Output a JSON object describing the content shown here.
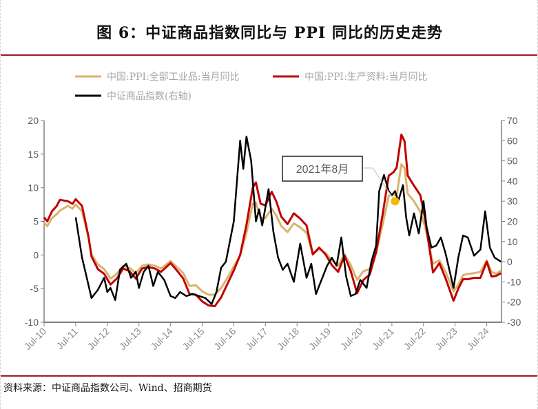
{
  "title": "图 6：中证商品指数同比与 PPI 同比的历史走势",
  "source": "资料来源：中证商品指数公司、Wind、招商期货",
  "chart_data": {
    "type": "line",
    "title": "图 6：中证商品指数同比与 PPI 同比的历史走势",
    "legend": [
      "中国:PPI:全部工业品:当月同比",
      "中国:PPI:生产资料:当月同比",
      "中证商品指数(右轴)"
    ],
    "legend_placement": "top",
    "x_ticks": [
      "Jul-10",
      "Jul-11",
      "Jul-12",
      "Jul-13",
      "Jul-14",
      "Jul-15",
      "Jul-16",
      "Jul-17",
      "Jul-18",
      "Jul-19",
      "Jul-20",
      "Jul-21",
      "Jul-22",
      "Jul-23",
      "Jul-24"
    ],
    "x_tick_years": [
      2010.5,
      2011.5,
      2012.5,
      2013.5,
      2014.5,
      2015.5,
      2016.5,
      2017.5,
      2018.5,
      2019.5,
      2020.5,
      2021.5,
      2022.5,
      2023.5,
      2024.5
    ],
    "xlim": [
      2010.5,
      2024.95
    ],
    "ylim_left": [
      -10,
      20
    ],
    "yticks_left": [
      -10,
      -5,
      0,
      5,
      10,
      15,
      20
    ],
    "ylim_right": [
      -30,
      70
    ],
    "yticks_right": [
      -30,
      -20,
      -10,
      0,
      10,
      20,
      30,
      40,
      50,
      60,
      70
    ],
    "annotation": {
      "text": "2021年8月",
      "x": 2021.6,
      "y": 8.0,
      "color": "#f5b800"
    },
    "series": [
      {
        "name": "中国:PPI:全部工业品:当月同比",
        "axis": "left",
        "color": "#d9b36a",
        "points": [
          [
            2010.5,
            4.8
          ],
          [
            2010.6,
            4.3
          ],
          [
            2010.75,
            5.5
          ],
          [
            2010.9,
            6.1
          ],
          [
            2011.0,
            6.6
          ],
          [
            2011.25,
            7.3
          ],
          [
            2011.4,
            6.9
          ],
          [
            2011.5,
            7.5
          ],
          [
            2011.7,
            6.5
          ],
          [
            2011.9,
            2.7
          ],
          [
            2012.0,
            0.1
          ],
          [
            2012.2,
            -1.4
          ],
          [
            2012.4,
            -2.1
          ],
          [
            2012.6,
            -3.5
          ],
          [
            2012.8,
            -2.8
          ],
          [
            2013.0,
            -1.6
          ],
          [
            2013.2,
            -1.9
          ],
          [
            2013.4,
            -2.7
          ],
          [
            2013.6,
            -1.6
          ],
          [
            2013.8,
            -1.4
          ],
          [
            2014.0,
            -1.6
          ],
          [
            2014.2,
            -2.0
          ],
          [
            2014.5,
            -0.9
          ],
          [
            2014.7,
            -1.8
          ],
          [
            2014.9,
            -2.7
          ],
          [
            2015.1,
            -4.6
          ],
          [
            2015.3,
            -4.5
          ],
          [
            2015.5,
            -5.4
          ],
          [
            2015.7,
            -5.9
          ],
          [
            2015.9,
            -5.9
          ],
          [
            2016.1,
            -4.9
          ],
          [
            2016.3,
            -3.4
          ],
          [
            2016.5,
            -1.7
          ],
          [
            2016.7,
            -0.1
          ],
          [
            2016.9,
            3.3
          ],
          [
            2017.1,
            7.6
          ],
          [
            2017.2,
            7.8
          ],
          [
            2017.35,
            5.5
          ],
          [
            2017.5,
            5.5
          ],
          [
            2017.7,
            6.9
          ],
          [
            2017.85,
            5.8
          ],
          [
            2018.0,
            4.3
          ],
          [
            2018.2,
            3.4
          ],
          [
            2018.4,
            4.7
          ],
          [
            2018.6,
            4.1
          ],
          [
            2018.8,
            3.3
          ],
          [
            2019.0,
            0.1
          ],
          [
            2019.2,
            0.9
          ],
          [
            2019.4,
            0.3
          ],
          [
            2019.6,
            -0.8
          ],
          [
            2019.8,
            -1.6
          ],
          [
            2020.0,
            0.1
          ],
          [
            2020.2,
            -1.5
          ],
          [
            2020.4,
            -3.7
          ],
          [
            2020.6,
            -2.4
          ],
          [
            2020.8,
            -2.1
          ],
          [
            2021.0,
            0.3
          ],
          [
            2021.2,
            4.4
          ],
          [
            2021.4,
            8.8
          ],
          [
            2021.55,
            9.0
          ],
          [
            2021.65,
            8.8
          ],
          [
            2021.8,
            13.5
          ],
          [
            2021.9,
            12.9
          ],
          [
            2022.0,
            9.1
          ],
          [
            2022.2,
            8.0
          ],
          [
            2022.4,
            6.4
          ],
          [
            2022.55,
            4.2
          ],
          [
            2022.7,
            0.9
          ],
          [
            2022.8,
            -1.3
          ],
          [
            2023.0,
            -0.8
          ],
          [
            2023.2,
            -2.5
          ],
          [
            2023.45,
            -5.4
          ],
          [
            2023.6,
            -4.4
          ],
          [
            2023.75,
            -3.0
          ],
          [
            2023.9,
            -2.8
          ],
          [
            2024.1,
            -2.7
          ],
          [
            2024.3,
            -2.5
          ],
          [
            2024.5,
            -0.8
          ],
          [
            2024.65,
            -2.5
          ],
          [
            2024.8,
            -2.8
          ],
          [
            2024.95,
            -2.3
          ]
        ]
      },
      {
        "name": "中国:PPI:生产资料:当月同比",
        "axis": "left",
        "color": "#c00000",
        "points": [
          [
            2010.5,
            5.6
          ],
          [
            2010.6,
            5.0
          ],
          [
            2010.75,
            6.5
          ],
          [
            2010.9,
            7.3
          ],
          [
            2011.0,
            8.2
          ],
          [
            2011.25,
            8.0
          ],
          [
            2011.4,
            7.6
          ],
          [
            2011.5,
            8.3
          ],
          [
            2011.7,
            7.3
          ],
          [
            2011.9,
            2.8
          ],
          [
            2012.0,
            -0.2
          ],
          [
            2012.2,
            -2.1
          ],
          [
            2012.4,
            -2.8
          ],
          [
            2012.6,
            -4.4
          ],
          [
            2012.8,
            -3.5
          ],
          [
            2013.0,
            -2.0
          ],
          [
            2013.2,
            -2.4
          ],
          [
            2013.4,
            -3.5
          ],
          [
            2013.6,
            -2.0
          ],
          [
            2013.8,
            -1.8
          ],
          [
            2014.0,
            -2.0
          ],
          [
            2014.2,
            -2.5
          ],
          [
            2014.5,
            -1.2
          ],
          [
            2014.7,
            -2.3
          ],
          [
            2014.9,
            -3.5
          ],
          [
            2015.1,
            -5.8
          ],
          [
            2015.3,
            -5.9
          ],
          [
            2015.5,
            -6.9
          ],
          [
            2015.7,
            -7.5
          ],
          [
            2015.9,
            -7.6
          ],
          [
            2016.1,
            -6.3
          ],
          [
            2016.3,
            -4.3
          ],
          [
            2016.5,
            -2.3
          ],
          [
            2016.7,
            0.0
          ],
          [
            2016.9,
            4.5
          ],
          [
            2017.1,
            10.0
          ],
          [
            2017.2,
            10.8
          ],
          [
            2017.35,
            7.6
          ],
          [
            2017.5,
            7.4
          ],
          [
            2017.7,
            9.4
          ],
          [
            2017.85,
            7.9
          ],
          [
            2018.0,
            5.7
          ],
          [
            2018.2,
            4.6
          ],
          [
            2018.4,
            6.2
          ],
          [
            2018.6,
            5.4
          ],
          [
            2018.8,
            4.4
          ],
          [
            2019.0,
            0.1
          ],
          [
            2019.2,
            1.1
          ],
          [
            2019.4,
            0.1
          ],
          [
            2019.6,
            -1.5
          ],
          [
            2019.8,
            -2.5
          ],
          [
            2020.0,
            -0.1
          ],
          [
            2020.2,
            -2.4
          ],
          [
            2020.4,
            -5.7
          ],
          [
            2020.6,
            -3.7
          ],
          [
            2020.8,
            -2.9
          ],
          [
            2021.0,
            0.4
          ],
          [
            2021.2,
            5.8
          ],
          [
            2021.4,
            11.8
          ],
          [
            2021.55,
            12.3
          ],
          [
            2021.65,
            13.0
          ],
          [
            2021.8,
            17.9
          ],
          [
            2021.9,
            16.9
          ],
          [
            2022.0,
            11.8
          ],
          [
            2022.2,
            10.3
          ],
          [
            2022.4,
            8.9
          ],
          [
            2022.55,
            5.4
          ],
          [
            2022.7,
            0.6
          ],
          [
            2022.8,
            -2.6
          ],
          [
            2023.0,
            -1.2
          ],
          [
            2023.2,
            -3.5
          ],
          [
            2023.45,
            -6.8
          ],
          [
            2023.6,
            -5.0
          ],
          [
            2023.75,
            -3.6
          ],
          [
            2023.9,
            -3.6
          ],
          [
            2024.1,
            -3.4
          ],
          [
            2024.3,
            -3.4
          ],
          [
            2024.5,
            -1.0
          ],
          [
            2024.65,
            -3.2
          ],
          [
            2024.8,
            -3.1
          ],
          [
            2024.95,
            -2.7
          ]
        ]
      },
      {
        "name": "中证商品指数(右轴)",
        "axis": "right",
        "color": "#000000",
        "points": [
          [
            2011.5,
            22
          ],
          [
            2011.7,
            2
          ],
          [
            2011.85,
            -8
          ],
          [
            2012.0,
            -18
          ],
          [
            2012.2,
            -14
          ],
          [
            2012.4,
            -8
          ],
          [
            2012.5,
            -15
          ],
          [
            2012.6,
            -13
          ],
          [
            2012.75,
            -19
          ],
          [
            2012.9,
            -4
          ],
          [
            2013.1,
            -1
          ],
          [
            2013.25,
            -8
          ],
          [
            2013.4,
            -5
          ],
          [
            2013.5,
            -13
          ],
          [
            2013.65,
            -5
          ],
          [
            2013.8,
            -2
          ],
          [
            2013.95,
            -12
          ],
          [
            2014.1,
            -5
          ],
          [
            2014.3,
            -9
          ],
          [
            2014.5,
            -17
          ],
          [
            2014.65,
            -18
          ],
          [
            2014.8,
            -15
          ],
          [
            2015.0,
            -17
          ],
          [
            2015.2,
            -16
          ],
          [
            2015.4,
            -17
          ],
          [
            2015.6,
            -18
          ],
          [
            2015.8,
            -21
          ],
          [
            2015.95,
            -15
          ],
          [
            2016.1,
            -3
          ],
          [
            2016.25,
            0
          ],
          [
            2016.4,
            12
          ],
          [
            2016.5,
            20
          ],
          [
            2016.6,
            40
          ],
          [
            2016.7,
            60
          ],
          [
            2016.8,
            46
          ],
          [
            2016.9,
            62
          ],
          [
            2017.05,
            50
          ],
          [
            2017.2,
            20
          ],
          [
            2017.3,
            26
          ],
          [
            2017.4,
            18
          ],
          [
            2017.6,
            36
          ],
          [
            2017.75,
            15
          ],
          [
            2017.9,
            2
          ],
          [
            2018.05,
            -4
          ],
          [
            2018.2,
            -1
          ],
          [
            2018.4,
            -10
          ],
          [
            2018.6,
            9
          ],
          [
            2018.8,
            -8
          ],
          [
            2018.95,
            -1
          ],
          [
            2019.1,
            -16
          ],
          [
            2019.3,
            -8
          ],
          [
            2019.45,
            -2
          ],
          [
            2019.6,
            2
          ],
          [
            2019.75,
            -2
          ],
          [
            2019.9,
            12
          ],
          [
            2020.05,
            -7
          ],
          [
            2020.2,
            -17
          ],
          [
            2020.35,
            -16
          ],
          [
            2020.5,
            -9
          ],
          [
            2020.7,
            -13
          ],
          [
            2020.85,
            0
          ],
          [
            2021.0,
            8
          ],
          [
            2021.1,
            35
          ],
          [
            2021.25,
            43
          ],
          [
            2021.4,
            35
          ],
          [
            2021.5,
            33
          ],
          [
            2021.6,
            35
          ],
          [
            2021.7,
            30
          ],
          [
            2021.85,
            38
          ],
          [
            2021.95,
            22
          ],
          [
            2022.05,
            13
          ],
          [
            2022.2,
            24
          ],
          [
            2022.35,
            14
          ],
          [
            2022.5,
            30
          ],
          [
            2022.6,
            17
          ],
          [
            2022.75,
            7
          ],
          [
            2022.9,
            8
          ],
          [
            2023.05,
            12
          ],
          [
            2023.2,
            4
          ],
          [
            2023.45,
            -13
          ],
          [
            2023.6,
            2
          ],
          [
            2023.75,
            13
          ],
          [
            2023.9,
            12
          ],
          [
            2024.1,
            3
          ],
          [
            2024.3,
            6
          ],
          [
            2024.45,
            25
          ],
          [
            2024.6,
            7
          ],
          [
            2024.75,
            2
          ],
          [
            2024.95,
            0
          ]
        ]
      }
    ]
  }
}
